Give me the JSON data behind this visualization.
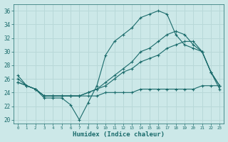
{
  "xlabel": "Humidex (Indice chaleur)",
  "background_color": "#cce8e8",
  "grid_color": "#b8d8d8",
  "line_color": "#1a6b6b",
  "xlim": [
    -0.5,
    23.5
  ],
  "ylim": [
    19.5,
    37
  ],
  "yticks": [
    20,
    22,
    24,
    26,
    28,
    30,
    32,
    34,
    36
  ],
  "xticks": [
    0,
    1,
    2,
    3,
    4,
    5,
    6,
    7,
    8,
    9,
    10,
    11,
    12,
    13,
    14,
    15,
    16,
    17,
    18,
    19,
    20,
    21,
    22,
    23
  ],
  "series": [
    {
      "x": [
        0,
        1,
        2,
        3,
        4,
        5,
        6,
        7,
        8,
        9,
        10,
        11,
        12,
        13,
        14,
        15,
        16,
        17,
        18,
        19,
        20,
        21,
        22,
        23
      ],
      "y": [
        26.5,
        25.0,
        24.5,
        23.2,
        23.2,
        23.2,
        22.2,
        20.0,
        22.5,
        25.0,
        29.5,
        31.5,
        32.5,
        33.5,
        35.0,
        35.5,
        36.0,
        35.5,
        32.5,
        31.0,
        30.5,
        30.0,
        27.0,
        24.5
      ]
    },
    {
      "x": [
        0,
        1,
        2,
        3,
        4,
        5,
        6,
        7,
        8,
        9,
        10,
        11,
        12,
        13,
        14,
        15,
        16,
        17,
        18,
        19,
        20,
        21,
        22,
        23
      ],
      "y": [
        26.0,
        25.0,
        24.5,
        23.5,
        23.5,
        23.5,
        23.5,
        23.5,
        24.0,
        24.5,
        25.5,
        26.5,
        27.5,
        28.5,
        30.0,
        30.5,
        31.5,
        32.5,
        33.0,
        32.5,
        31.0,
        30.0,
        27.0,
        25.0
      ]
    },
    {
      "x": [
        0,
        1,
        2,
        3,
        4,
        5,
        6,
        7,
        8,
        9,
        10,
        11,
        12,
        13,
        14,
        15,
        16,
        17,
        18,
        19,
        20,
        21,
        22,
        23
      ],
      "y": [
        25.5,
        25.0,
        24.5,
        23.5,
        23.5,
        23.5,
        23.5,
        23.5,
        24.0,
        24.5,
        25.0,
        26.0,
        27.0,
        27.5,
        28.5,
        29.0,
        29.5,
        30.5,
        31.0,
        31.5,
        31.5,
        30.0,
        27.0,
        25.0
      ]
    },
    {
      "x": [
        0,
        1,
        2,
        3,
        4,
        5,
        6,
        7,
        8,
        9,
        10,
        11,
        12,
        13,
        14,
        15,
        16,
        17,
        18,
        19,
        20,
        21,
        22,
        23
      ],
      "y": [
        25.5,
        25.0,
        24.5,
        23.5,
        23.5,
        23.5,
        23.5,
        23.5,
        23.5,
        23.5,
        24.0,
        24.0,
        24.0,
        24.0,
        24.5,
        24.5,
        24.5,
        24.5,
        24.5,
        24.5,
        24.5,
        25.0,
        25.0,
        25.0
      ]
    }
  ]
}
